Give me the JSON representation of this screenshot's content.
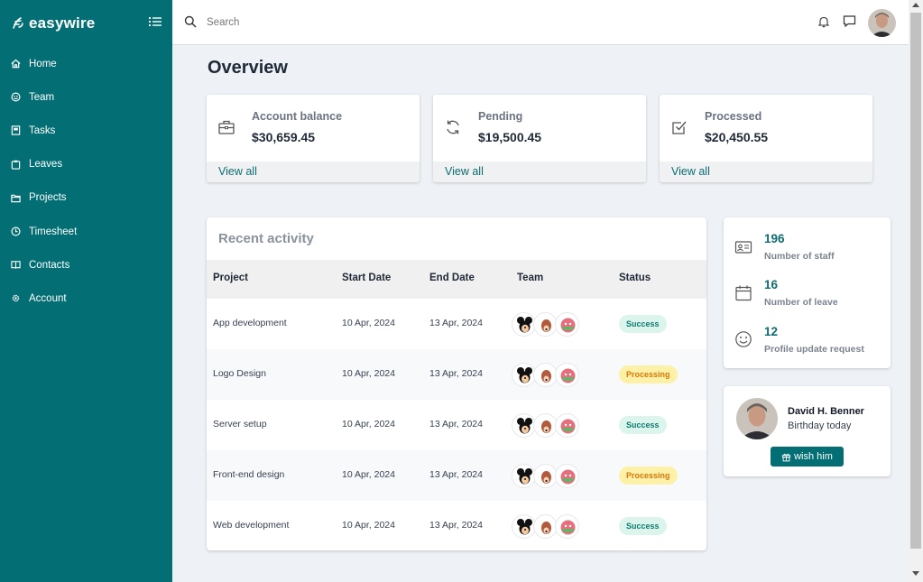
{
  "brand": {
    "name": "easywire",
    "color": "#036f74"
  },
  "sidebar": {
    "items": [
      {
        "label": "Home",
        "icon": "home-icon"
      },
      {
        "label": "Team",
        "icon": "team-icon"
      },
      {
        "label": "Tasks",
        "icon": "tasks-icon"
      },
      {
        "label": "Leaves",
        "icon": "leaves-icon"
      },
      {
        "label": "Projects",
        "icon": "folder-icon"
      },
      {
        "label": "Timesheet",
        "icon": "clock-icon"
      },
      {
        "label": "Contacts",
        "icon": "book-icon"
      },
      {
        "label": "Account",
        "icon": "gear-icon"
      }
    ]
  },
  "search": {
    "placeholder": "Search",
    "value": ""
  },
  "overview": {
    "title": "Overview",
    "cards": [
      {
        "label": "Account balance",
        "value": "$30,659.45",
        "link": "View all",
        "icon": "briefcase-icon"
      },
      {
        "label": "Pending",
        "value": "$19,500.45",
        "link": "View all",
        "icon": "refresh-icon"
      },
      {
        "label": "Processed",
        "value": "$20,450.55",
        "link": "View all",
        "icon": "checkbox-icon"
      }
    ]
  },
  "activity": {
    "title": "Recent activity",
    "columns": [
      "Project",
      "Start Date",
      "End Date",
      "Team",
      "Status"
    ],
    "rows": [
      {
        "project": "App development",
        "start": "10 Apr, 2024",
        "end": "13 Apr, 2024",
        "status": "Success"
      },
      {
        "project": "Logo Design",
        "start": "10 Apr, 2024",
        "end": "13 Apr, 2024",
        "status": "Processing"
      },
      {
        "project": "Server setup",
        "start": "10 Apr, 2024",
        "end": "13 Apr, 2024",
        "status": "Success"
      },
      {
        "project": "Front-end design",
        "start": "10 Apr, 2024",
        "end": "13 Apr, 2024",
        "status": "Processing"
      },
      {
        "project": "Web development",
        "start": "10 Apr, 2024",
        "end": "13 Apr, 2024",
        "status": "Success"
      }
    ]
  },
  "stats": [
    {
      "value": "196",
      "label": "Number of staff",
      "icon": "id-card-icon"
    },
    {
      "value": "16",
      "label": "Number of leave",
      "icon": "calendar-icon"
    },
    {
      "value": "12",
      "label": "Profile update request",
      "icon": "smile-icon"
    }
  ],
  "birthday": {
    "name": "David H. Benner",
    "subtitle": "Birthday today",
    "button": "wish him"
  }
}
